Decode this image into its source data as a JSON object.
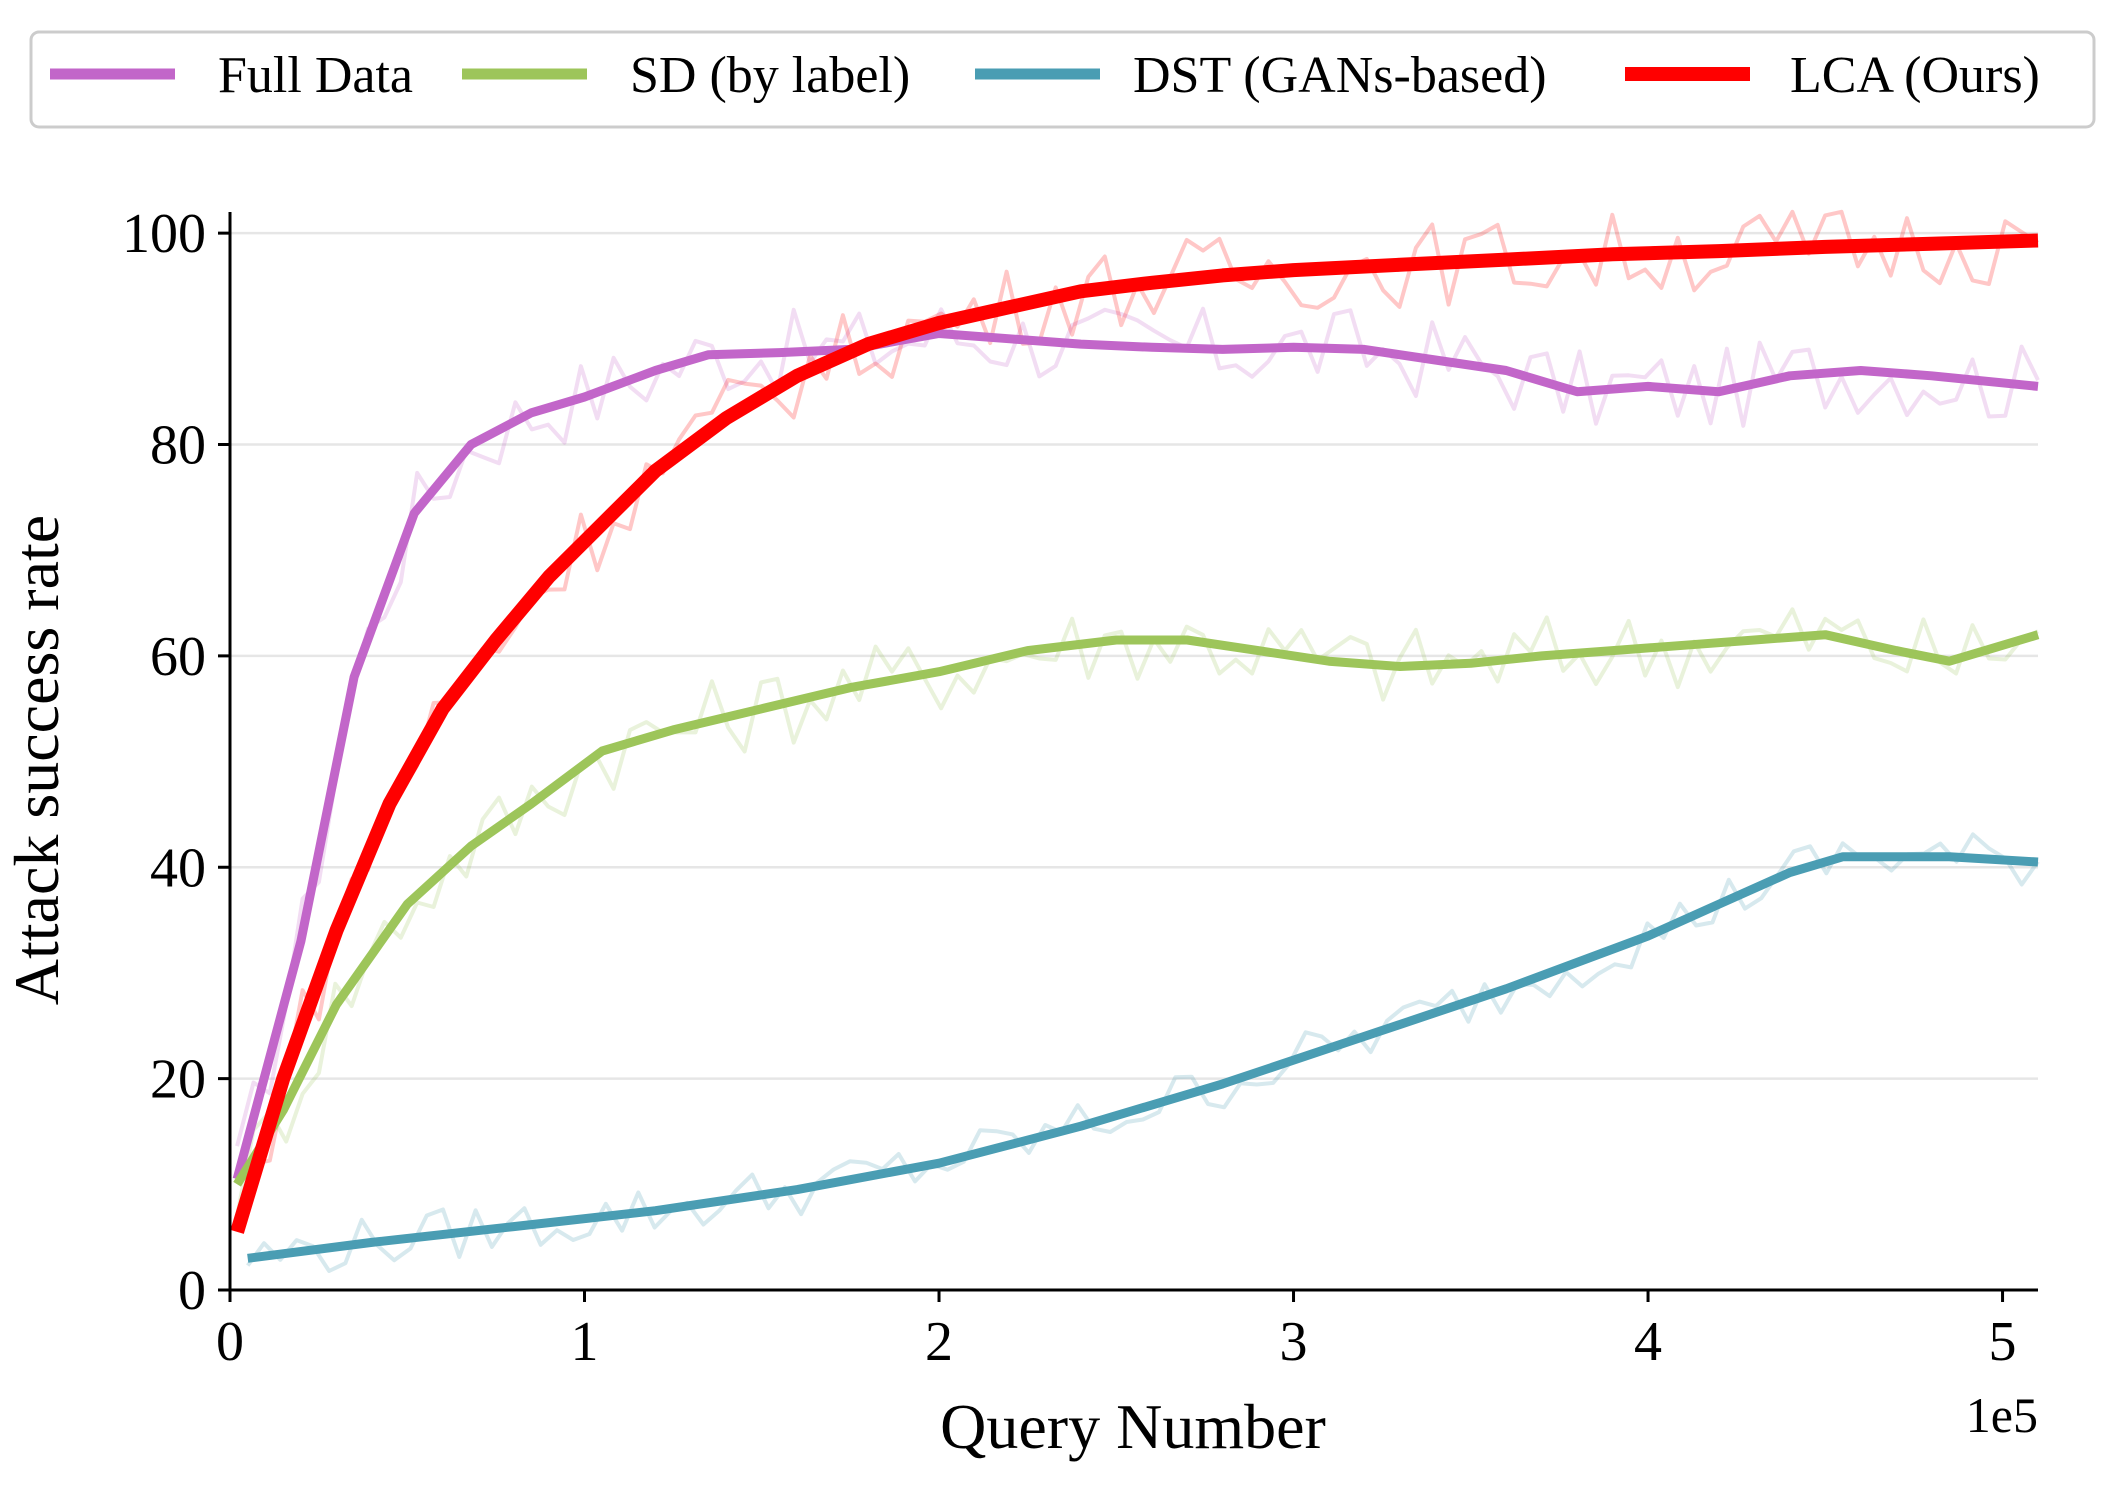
{
  "chart_data": {
    "type": "line",
    "xlabel": "Query Number",
    "ylabel": "Attack success rate",
    "x_scale_label": "1e5",
    "xlim": [
      0,
      5.1
    ],
    "ylim": [
      0,
      102
    ],
    "x_ticks": [
      0,
      1,
      2,
      3,
      4,
      5
    ],
    "x_tick_labels": [
      "0",
      "1",
      "2",
      "3",
      "4",
      "5"
    ],
    "y_ticks": [
      0,
      20,
      40,
      60,
      80,
      100
    ],
    "y_tick_labels": [
      "0",
      "20",
      "40",
      "60",
      "80",
      "100"
    ],
    "grid": "horizontal",
    "legend_placement": "top, above plot",
    "series": [
      {
        "name": "Full Data",
        "color": "#c266c9",
        "x": [
          0.02,
          0.2,
          0.35,
          0.52,
          0.68,
          0.85,
          1.0,
          1.2,
          1.35,
          1.55,
          1.75,
          2.0,
          2.2,
          2.4,
          2.6,
          2.8,
          3.0,
          3.2,
          3.4,
          3.6,
          3.8,
          4.0,
          4.2,
          4.4,
          4.6,
          4.8,
          5.1
        ],
        "values": [
          10.5,
          33,
          58,
          73.5,
          80,
          83,
          84.5,
          87,
          88.5,
          88.7,
          89,
          90.5,
          90,
          89.5,
          89.2,
          89,
          89.2,
          89,
          88,
          87,
          85,
          85.5,
          85,
          86.5,
          87,
          86.5,
          85.5
        ]
      },
      {
        "name": "SD (by label)",
        "color": "#9dc55a",
        "x": [
          0.02,
          0.15,
          0.3,
          0.5,
          0.68,
          0.85,
          1.05,
          1.25,
          1.5,
          1.75,
          2.0,
          2.25,
          2.5,
          2.7,
          2.9,
          3.1,
          3.3,
          3.5,
          3.7,
          3.9,
          4.1,
          4.3,
          4.5,
          4.7,
          4.85,
          5.1
        ],
        "values": [
          10,
          17,
          27,
          36.5,
          42,
          46,
          51,
          53,
          55,
          57,
          58.5,
          60.5,
          61.5,
          61.5,
          60.5,
          59.5,
          59,
          59.3,
          60,
          60.5,
          61,
          61.5,
          62,
          60.5,
          59.5,
          62
        ]
      },
      {
        "name": "DST (GANs-based)",
        "color": "#4a9db3",
        "x": [
          0.05,
          0.4,
          0.8,
          1.2,
          1.6,
          2.0,
          2.4,
          2.8,
          3.2,
          3.6,
          4.0,
          4.2,
          4.4,
          4.55,
          4.7,
          4.85,
          5.1
        ],
        "values": [
          3,
          4.5,
          6,
          7.5,
          9.5,
          12,
          15.5,
          19.5,
          24,
          28.5,
          33.5,
          36.5,
          39.5,
          41,
          41,
          41,
          40.5
        ]
      },
      {
        "name": "LCA (Ours)",
        "color": "#ff0000",
        "x": [
          0.02,
          0.15,
          0.3,
          0.45,
          0.6,
          0.75,
          0.9,
          1.05,
          1.2,
          1.4,
          1.6,
          1.8,
          2.0,
          2.2,
          2.4,
          2.6,
          2.8,
          3.0,
          3.3,
          3.6,
          3.9,
          4.2,
          4.5,
          4.8,
          5.1
        ],
        "values": [
          5.5,
          20,
          34,
          46,
          55,
          61.5,
          67.5,
          72.5,
          77.5,
          82.5,
          86.5,
          89.5,
          91.5,
          93,
          94.5,
          95.3,
          96,
          96.5,
          97,
          97.5,
          98,
          98.3,
          98.7,
          99,
          99.3
        ]
      }
    ]
  }
}
